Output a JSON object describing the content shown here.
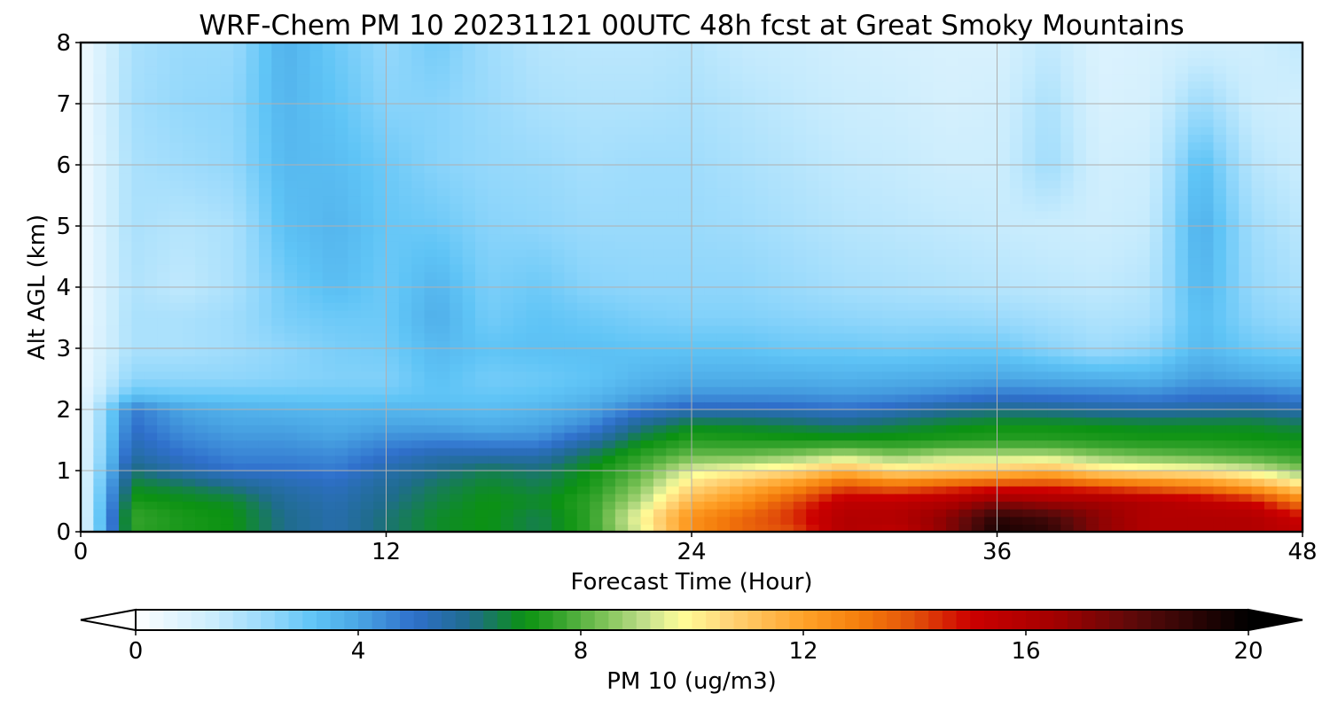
{
  "chart_data": {
    "type": "heatmap",
    "title": "WRF-Chem PM 10  20231121 00UTC 48h fcst at Great Smoky Mountains",
    "xlabel": "Forecast Time (Hour)",
    "ylabel": "Alt AGL (km)",
    "xlim": [
      0,
      48
    ],
    "ylim": [
      0,
      8
    ],
    "xticks": [
      0,
      12,
      24,
      36,
      48
    ],
    "yticks": [
      0,
      1,
      2,
      3,
      4,
      5,
      6,
      7,
      8
    ],
    "grid": true,
    "x": [
      0,
      2,
      4,
      6,
      8,
      10,
      12,
      14,
      16,
      18,
      20,
      22,
      24,
      26,
      28,
      30,
      32,
      34,
      36,
      38,
      40,
      42,
      44,
      46,
      48
    ],
    "y": [
      0,
      0.25,
      0.5,
      0.75,
      1,
      1.25,
      1.5,
      1.75,
      2,
      2.25,
      2.5,
      3,
      3.5,
      4,
      5,
      6,
      7,
      8
    ],
    "z": [
      [
        0.5,
        7.5,
        7.2,
        7.0,
        6.0,
        5.5,
        6.2,
        6.8,
        7.0,
        6.5,
        7.5,
        9.5,
        12.5,
        13.5,
        14.0,
        16.0,
        15.5,
        17.0,
        19.5,
        19.0,
        17.0,
        16.0,
        16.0,
        16.0,
        15.5
      ],
      [
        0.5,
        7.6,
        7.2,
        7.0,
        6.0,
        5.5,
        6.2,
        6.8,
        7.0,
        6.5,
        7.5,
        9.8,
        12.5,
        13.5,
        14.5,
        16.0,
        16.0,
        17.0,
        19.0,
        18.5,
        17.0,
        16.0,
        16.0,
        16.0,
        15.0
      ],
      [
        0.5,
        7.2,
        7.0,
        6.8,
        5.8,
        5.4,
        6.0,
        6.6,
        7.0,
        6.8,
        7.5,
        9.0,
        11.5,
        12.5,
        14.0,
        15.5,
        15.5,
        16.0,
        17.0,
        16.5,
        16.5,
        16.0,
        15.5,
        15.0,
        13.0
      ],
      [
        0.5,
        6.8,
        6.5,
        6.0,
        5.5,
        5.2,
        5.8,
        6.4,
        6.8,
        6.5,
        7.2,
        8.5,
        10.5,
        11.5,
        12.5,
        14.0,
        13.5,
        14.0,
        14.5,
        14.5,
        14.0,
        13.5,
        13.0,
        12.0,
        10.5
      ],
      [
        0.5,
        6.2,
        5.5,
        5.0,
        5.0,
        4.8,
        5.5,
        6.0,
        6.5,
        6.2,
        7.0,
        8.0,
        9.5,
        10.0,
        10.5,
        11.5,
        10.5,
        10.8,
        11.0,
        11.5,
        10.5,
        10.2,
        10.0,
        9.5,
        8.5
      ],
      [
        0.5,
        5.6,
        5.0,
        4.6,
        4.6,
        4.5,
        5.0,
        5.5,
        5.5,
        5.5,
        6.5,
        7.5,
        8.2,
        8.2,
        8.5,
        9.0,
        8.5,
        9.0,
        9.0,
        9.0,
        8.5,
        8.2,
        8.0,
        7.8,
        7.5
      ],
      [
        0.5,
        5.3,
        4.6,
        4.3,
        4.3,
        4.1,
        4.5,
        4.6,
        4.5,
        4.5,
        5.5,
        6.8,
        7.4,
        7.3,
        7.2,
        7.2,
        7.2,
        7.3,
        7.4,
        7.4,
        7.3,
        7.2,
        7.2,
        7.1,
        7.0
      ],
      [
        0.5,
        5.0,
        4.3,
        4.0,
        4.0,
        3.8,
        4.0,
        4.0,
        3.8,
        4.0,
        4.5,
        6.0,
        6.8,
        6.7,
        6.5,
        6.2,
        6.5,
        6.8,
        7.0,
        7.0,
        6.9,
        6.8,
        6.8,
        6.8,
        6.5
      ],
      [
        0.5,
        4.8,
        4.0,
        3.7,
        3.6,
        3.5,
        3.6,
        3.5,
        3.4,
        3.6,
        4.0,
        4.8,
        5.3,
        5.3,
        5.2,
        5.0,
        5.3,
        5.8,
        6.0,
        5.9,
        5.7,
        5.6,
        5.7,
        5.8,
        5.5
      ],
      [
        0.5,
        3.2,
        3.0,
        3.0,
        3.0,
        3.0,
        3.0,
        3.2,
        3.1,
        3.2,
        3.5,
        4.0,
        4.3,
        4.3,
        4.3,
        4.2,
        4.3,
        4.5,
        4.8,
        4.7,
        4.6,
        4.5,
        4.8,
        4.8,
        4.5
      ],
      [
        0.4,
        2.5,
        2.5,
        2.5,
        2.6,
        2.7,
        2.7,
        3.3,
        2.9,
        3.0,
        3.2,
        3.6,
        3.8,
        3.8,
        3.8,
        3.7,
        3.8,
        3.9,
        4.0,
        3.9,
        3.8,
        3.7,
        4.2,
        4.0,
        3.8
      ],
      [
        0.4,
        2.0,
        2.0,
        2.2,
        2.5,
        2.8,
        2.9,
        3.5,
        3.2,
        3.3,
        3.3,
        3.2,
        3.2,
        3.2,
        3.0,
        3.0,
        2.9,
        3.0,
        3.0,
        2.6,
        2.2,
        2.5,
        3.5,
        3.0,
        2.8
      ],
      [
        0.3,
        2.0,
        2.0,
        2.2,
        2.8,
        3.0,
        3.0,
        3.8,
        2.9,
        3.2,
        3.0,
        2.8,
        2.7,
        2.7,
        2.6,
        2.5,
        2.4,
        2.4,
        2.3,
        2.1,
        1.9,
        2.0,
        3.4,
        2.6,
        2.3
      ],
      [
        0.3,
        1.9,
        1.6,
        2.0,
        2.9,
        3.4,
        3.0,
        3.6,
        2.8,
        3.0,
        2.6,
        2.5,
        2.5,
        2.5,
        2.3,
        2.1,
        2.0,
        1.9,
        1.8,
        1.7,
        1.6,
        1.8,
        3.6,
        2.4,
        2.0
      ],
      [
        0.3,
        2.0,
        1.8,
        2.0,
        3.3,
        3.6,
        3.1,
        3.0,
        2.6,
        2.5,
        2.3,
        2.3,
        2.3,
        2.2,
        2.0,
        1.8,
        1.7,
        1.6,
        1.5,
        1.4,
        1.3,
        1.5,
        3.8,
        2.2,
        1.7
      ],
      [
        0.3,
        2.0,
        2.2,
        2.4,
        3.5,
        3.4,
        3.0,
        2.6,
        2.4,
        2.3,
        2.1,
        2.2,
        2.2,
        2.0,
        1.8,
        1.6,
        1.5,
        1.3,
        1.3,
        2.2,
        1.2,
        1.3,
        3.4,
        1.8,
        1.4
      ],
      [
        0.3,
        2.1,
        2.4,
        2.5,
        3.6,
        3.2,
        2.6,
        2.6,
        2.3,
        2.0,
        1.9,
        1.9,
        2.0,
        1.8,
        1.6,
        1.4,
        1.3,
        1.1,
        1.2,
        2.0,
        1.0,
        1.1,
        2.3,
        1.4,
        1.2
      ],
      [
        0.3,
        2.0,
        2.3,
        2.3,
        3.7,
        3.0,
        2.4,
        2.9,
        2.2,
        1.8,
        1.7,
        1.7,
        1.8,
        1.5,
        1.4,
        1.2,
        1.1,
        1.0,
        1.0,
        1.6,
        0.9,
        1.0,
        1.2,
        1.2,
        1.6
      ]
    ],
    "colorbar": {
      "label": "PM 10  (ug/m3)",
      "min": 0,
      "max": 20,
      "ticks": [
        0,
        4,
        8,
        12,
        16,
        20
      ],
      "extend": "both"
    }
  }
}
